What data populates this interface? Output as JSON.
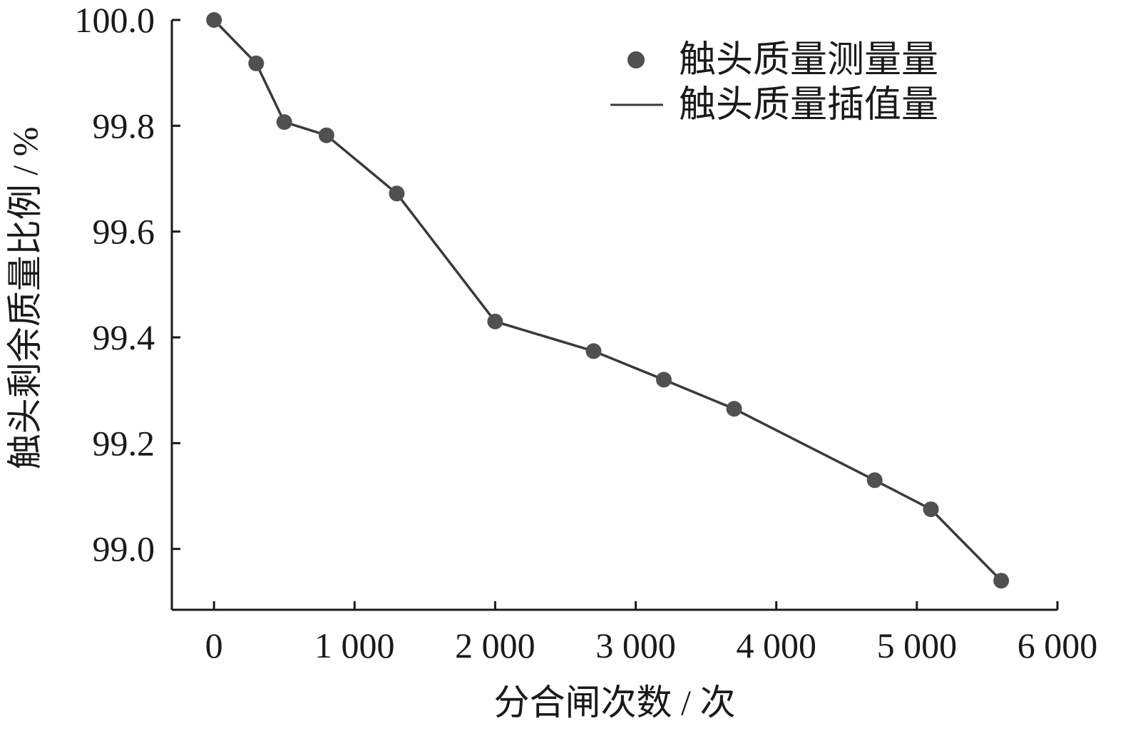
{
  "chart_data": {
    "type": "line",
    "xlabel": "分合闸次数 / 次",
    "ylabel": "触头剩余质量比例 / %",
    "xlim": [
      -300,
      6000
    ],
    "ylim": [
      98.885,
      100.0
    ],
    "x_ticks": [
      0,
      1000,
      2000,
      3000,
      4000,
      5000,
      6000
    ],
    "x_tick_labels": [
      "0",
      "1 000",
      "2 000",
      "3 000",
      "4 000",
      "5 000",
      "6 000"
    ],
    "y_ticks": [
      99.0,
      99.2,
      99.4,
      99.6,
      99.8,
      100.0
    ],
    "y_tick_labels": [
      "99.0",
      "99.2",
      "99.4",
      "99.6",
      "99.8",
      "100.0"
    ],
    "grid": false,
    "legend_position": "top-right",
    "series": [
      {
        "name": "触头质量测量量",
        "kind": "scatter",
        "color": "#505050",
        "x": [
          0,
          300,
          500,
          800,
          1300,
          2000,
          2700,
          3200,
          3700,
          4700,
          5100,
          5600
        ],
        "y": [
          100.0,
          99.918,
          99.807,
          99.782,
          99.672,
          99.43,
          99.374,
          99.32,
          99.265,
          99.13,
          99.075,
          98.94
        ]
      },
      {
        "name": "触头质量插值量",
        "kind": "line",
        "color": "#3a3a3a",
        "x": [
          0,
          300,
          500,
          800,
          1300,
          2000,
          2700,
          3200,
          3700,
          4700,
          5100,
          5600
        ],
        "y": [
          100.0,
          99.918,
          99.807,
          99.782,
          99.672,
          99.43,
          99.374,
          99.32,
          99.265,
          99.13,
          99.075,
          98.94
        ]
      }
    ]
  }
}
